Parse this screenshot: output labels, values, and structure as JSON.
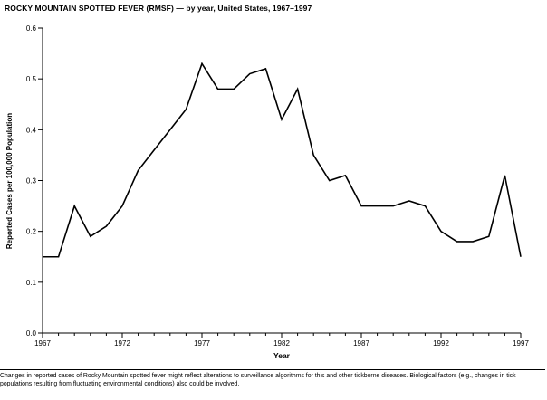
{
  "title": "ROCKY MOUNTAIN SPOTTED FEVER (RMSF) — by year, United States, 1967–1997",
  "footnote": "Changes in reported cases of Rocky Mountain spotted fever might reflect alterations to surveillance algorithms for this and other tickborne diseases. Biological factors (e.g., changes in tick populations resulting from fluctuating environmental conditions) also could be involved.",
  "chart_data": {
    "type": "line",
    "title": "ROCKY MOUNTAIN SPOTTED FEVER (RMSF) — by year, United States, 1967–1997",
    "xlabel": "Year",
    "ylabel": "Reported Cases per 100,000 Population",
    "x": [
      1967,
      1968,
      1969,
      1970,
      1971,
      1972,
      1973,
      1974,
      1975,
      1976,
      1977,
      1978,
      1979,
      1980,
      1981,
      1982,
      1983,
      1984,
      1985,
      1986,
      1987,
      1988,
      1989,
      1990,
      1991,
      1992,
      1993,
      1994,
      1995,
      1996,
      1997
    ],
    "values": [
      0.15,
      0.15,
      0.25,
      0.19,
      0.21,
      0.25,
      0.32,
      0.36,
      0.4,
      0.44,
      0.53,
      0.48,
      0.48,
      0.51,
      0.52,
      0.42,
      0.48,
      0.35,
      0.3,
      0.31,
      0.25,
      0.25,
      0.25,
      0.26,
      0.25,
      0.2,
      0.18,
      0.18,
      0.19,
      0.31,
      0.15
    ],
    "xlim": [
      1967,
      1997
    ],
    "ylim": [
      0.0,
      0.6
    ],
    "x_ticks": [
      1967,
      1972,
      1977,
      1982,
      1987,
      1992,
      1997
    ],
    "y_ticks": [
      0.0,
      0.1,
      0.2,
      0.3,
      0.4,
      0.5,
      0.6
    ],
    "line_color": "#000000",
    "grid": false,
    "legend": "none"
  }
}
